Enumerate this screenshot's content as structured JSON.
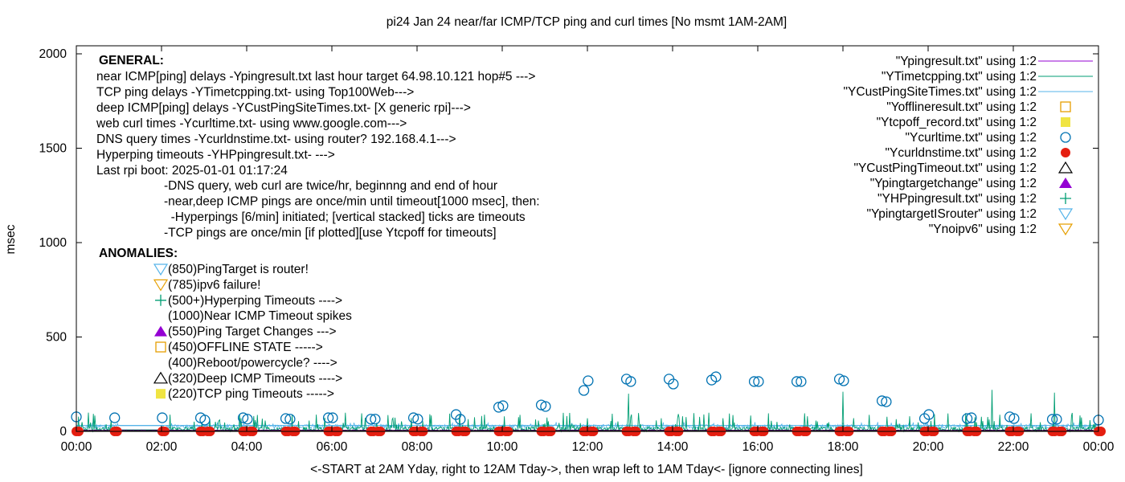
{
  "chart_data": {
    "type": "line",
    "title": "pi24 Jan 24  near/far ICMP/TCP ping and curl times [No msmt 1AM-2AM]",
    "xlabel": "<-START at 2AM Yday, right to 12AM Tday->, then wrap left to 1AM Tday<- [ignore connecting lines]",
    "ylabel": "msec",
    "ylim": [
      0,
      2000
    ],
    "yticks": [
      "0",
      "500",
      "1000",
      "1500",
      "2000"
    ],
    "xticks": [
      "00:00",
      "02:00",
      "04:00",
      "06:00",
      "08:00",
      "10:00",
      "12:00",
      "14:00",
      "16:00",
      "18:00",
      "20:00",
      "22:00",
      "00:00"
    ],
    "grid": false,
    "legend_position": "top-right",
    "legend": [
      {
        "label": "\"Ypingresult.txt\" using 1:2",
        "style": "line",
        "color": "#9400d3"
      },
      {
        "label": "\"YTimetcpping.txt\" using 1:2",
        "style": "line",
        "color": "#009e73"
      },
      {
        "label": "\"YCustPingSiteTimes.txt\" using 1:2",
        "style": "line",
        "color": "#56b4e9"
      },
      {
        "label": "\"Yofflineresult.txt\" using 1:2",
        "style": "open-square",
        "color": "#e69f00"
      },
      {
        "label": "\"Ytcpoff_record.txt\" using 1:2",
        "style": "filled-square",
        "color": "#f0e442"
      },
      {
        "label": "\"Ycurltime.txt\" using 1:2",
        "style": "open-circle",
        "color": "#0072b2"
      },
      {
        "label": "\"Ycurldnstime.txt\" using 1:2",
        "style": "filled-circle",
        "color": "#e51e10"
      },
      {
        "label": "\"YCustPingTimeout.txt\" using 1:2",
        "style": "open-triangle",
        "color": "#000000"
      },
      {
        "label": "\"Ypingtargetchange\" using 1:2",
        "style": "filled-triangle",
        "color": "#9400d3"
      },
      {
        "label": "\"YHPpingresult.txt\" using 1:2",
        "style": "plus",
        "color": "#009e73"
      },
      {
        "label": "\"YpingtargetISrouter\" using 1:2",
        "style": "open-down-triangle",
        "color": "#56b4e9"
      },
      {
        "label": "\"Ynoipv6\" using 1:2",
        "style": "open-down-triangle",
        "color": "#e69f00"
      }
    ],
    "series": [
      {
        "name": "\"Ycurltime.txt\" using 1:2",
        "x": [
          "00:00",
          "00:54",
          "02:01",
          "02:55",
          "03:01",
          "03:55",
          "04:01",
          "04:55",
          "05:01",
          "05:55",
          "06:01",
          "06:55",
          "07:01",
          "07:55",
          "08:01",
          "08:55",
          "09:01",
          "09:55",
          "10:01",
          "10:55",
          "11:01",
          "11:55",
          "12:01",
          "12:55",
          "13:01",
          "13:55",
          "14:01",
          "14:55",
          "15:01",
          "15:55",
          "16:01",
          "16:55",
          "17:01",
          "17:55",
          "18:01",
          "18:55",
          "19:01",
          "19:55",
          "20:01",
          "20:55",
          "21:01",
          "21:55",
          "22:01",
          "22:55",
          "23:01",
          "23:58"
        ],
        "y": [
          77,
          72,
          72,
          72,
          60,
          72,
          65,
          68,
          65,
          72,
          72,
          65,
          65,
          72,
          65,
          89,
          64,
          128,
          136,
          140,
          132,
          217,
          268,
          277,
          264,
          277,
          251,
          272,
          289,
          264,
          264,
          264,
          264,
          277,
          268,
          162,
          157,
          68,
          89,
          68,
          72,
          77,
          68,
          64,
          64,
          60
        ]
      },
      {
        "name": "\"Ycurldnstime.txt\" using 1:2",
        "x": [
          "00:00",
          "00:54",
          "02:01",
          "02:55",
          "03:05",
          "03:55",
          "04:05",
          "04:55",
          "05:05",
          "05:55",
          "06:05",
          "06:55",
          "07:05",
          "07:55",
          "08:05",
          "08:55",
          "09:05",
          "09:55",
          "10:05",
          "10:55",
          "11:05",
          "11:55",
          "12:05",
          "12:55",
          "13:05",
          "13:55",
          "14:05",
          "14:55",
          "15:05",
          "15:55",
          "16:05",
          "16:55",
          "17:05",
          "17:55",
          "18:05",
          "18:55",
          "19:05",
          "19:55",
          "20:05",
          "20:55",
          "21:05",
          "21:55",
          "22:05",
          "22:55",
          "23:05",
          "23:58"
        ],
        "y": [
          0,
          0,
          0,
          0,
          0,
          0,
          0,
          0,
          0,
          0,
          0,
          0,
          0,
          0,
          0,
          0,
          0,
          0,
          0,
          0,
          0,
          0,
          0,
          0,
          0,
          0,
          0,
          0,
          0,
          0,
          0,
          0,
          0,
          0,
          0,
          0,
          0,
          0,
          0,
          0,
          0,
          0,
          0,
          0,
          0,
          0
        ]
      },
      {
        "name": "\"YTimetcpping.txt\" using 1:2",
        "typical_range": [
          0,
          60
        ],
        "spikes": {
          "x": [
            "12:58",
            "18:00",
            "21:30",
            "22:58"
          ],
          "y": [
            200,
            210,
            220,
            205
          ]
        }
      },
      {
        "name": "\"YCustPingSiteTimes.txt\" using 1:2",
        "typical_range": [
          15,
          50
        ]
      },
      {
        "name": "\"Ypingresult.txt\" using 1:2",
        "typical_range": [
          3,
          8
        ]
      }
    ]
  },
  "annotations": {
    "general_heading": "GENERAL:",
    "general_lines": [
      "near ICMP[ping] delays -Ypingresult.txt last hour target 64.98.10.121 hop#5 --->",
      "TCP ping delays -YTimetcpping.txt- using Top100Web--->",
      "deep ICMP[ping] delays -YCustPingSiteTimes.txt- [X generic rpi]--->",
      "web curl times -Ycurltime.txt- using www.google.com--->",
      "DNS query times -Ycurldnstime.txt- using router? 192.168.4.1--->",
      "Hyperping timeouts -YHPpingresult.txt- --->",
      "Last rpi boot: 2025-01-01 01:17:24"
    ],
    "notes": [
      "-DNS query, web curl are twice/hr, beginnng and end of hour",
      "-near,deep ICMP pings are once/min until timeout[1000 msec], then:",
      "  -Hyperpings [6/min] initiated; [vertical stacked] ticks are timeouts",
      "-TCP pings are once/min [if plotted][use Ytcpoff for timeouts]"
    ],
    "anomalies_heading": "ANOMALIES:",
    "anomalies": [
      {
        "text": "(850)PingTarget is router!",
        "icon": "open-down-triangle",
        "color": "#56b4e9"
      },
      {
        "text": "(785)ipv6 failure!",
        "icon": "open-down-triangle",
        "color": "#e69f00"
      },
      {
        "text": "(500+)Hyperping Timeouts ---->",
        "icon": "plus",
        "color": "#009e73"
      },
      {
        "text": "(1000)Near ICMP Timeout spikes",
        "icon": "",
        "color": ""
      },
      {
        "text": "(550)Ping Target Changes --->",
        "icon": "filled-triangle",
        "color": "#9400d3"
      },
      {
        "text": "(450)OFFLINE STATE ----->",
        "icon": "open-square",
        "color": "#e69f00"
      },
      {
        "text": "(400)Reboot/powercycle? ---->",
        "icon": "",
        "color": ""
      },
      {
        "text": "(320)Deep ICMP Timeouts ---->",
        "icon": "open-triangle",
        "color": "#000000"
      },
      {
        "text": "(220)TCP ping Timeouts ----->",
        "icon": "filled-square",
        "color": "#f0e442"
      }
    ]
  }
}
